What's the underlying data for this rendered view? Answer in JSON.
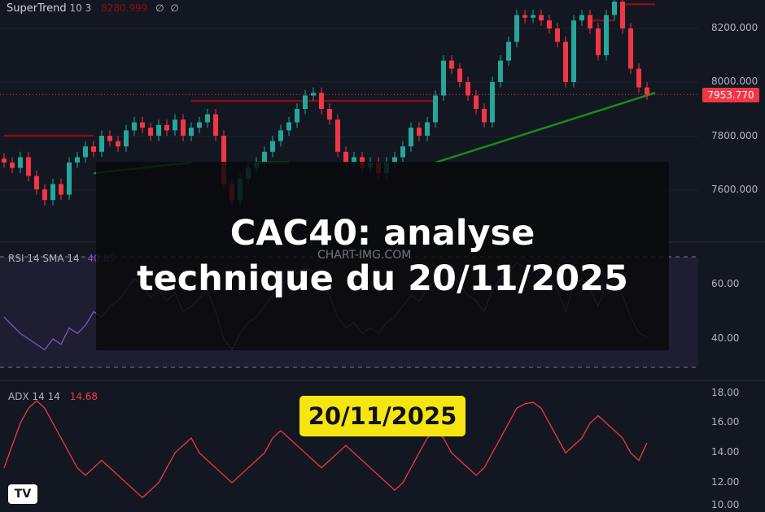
{
  "supertrend": {
    "label": "SuperTrend",
    "params": "10 3",
    "value": "8280.999",
    "extra1": "∅",
    "extra2": "∅"
  },
  "rsi": {
    "label": "RSI",
    "params": "14 SMA 14",
    "value": "40.85"
  },
  "adx": {
    "label": "ADX",
    "params": "14 14",
    "value": "14.68"
  },
  "watermark": "CHART-IMG.COM",
  "price_axis": [
    "8200.000",
    "8000.000",
    "7800.000",
    "7600.000"
  ],
  "rsi_axis": [
    "60.00",
    "40.00"
  ],
  "adx_axis": [
    "18.00",
    "16.00",
    "14.00",
    "12.00",
    "10.00"
  ],
  "last_price": "7953.770",
  "overlay": {
    "line1": "CAC40: analyse",
    "line2": "technique du 20/11/2025"
  },
  "date_badge": "20/11/2025",
  "logo": "TV",
  "colors": {
    "up": "#26a69a",
    "down": "#f23645",
    "st_up": "#1b8a1b",
    "st_down": "#8b0d10",
    "rsi": "#7e57c2",
    "adx": "#f23645",
    "badge": "#f5e612"
  },
  "chart_data": {
    "type": "candlestick",
    "closes": [
      7700,
      7680,
      7720,
      7650,
      7600,
      7560,
      7620,
      7580,
      7700,
      7720,
      7760,
      7740,
      7800,
      7780,
      7760,
      7820,
      7850,
      7830,
      7800,
      7840,
      7820,
      7860,
      7800,
      7830,
      7850,
      7880,
      7800,
      7620,
      7560,
      7640,
      7680,
      7700,
      7740,
      7780,
      7820,
      7850,
      7900,
      7950,
      7960,
      7900,
      7860,
      7740,
      7700,
      7720,
      7680,
      7700,
      7660,
      7700,
      7720,
      7760,
      7830,
      7800,
      7850,
      7950,
      8080,
      8050,
      8000,
      7950,
      7900,
      7850,
      8000,
      8080,
      8150,
      8250,
      8240,
      8250,
      8230,
      8200,
      8150,
      8000,
      8230,
      8250,
      8200,
      8100,
      8250,
      8300,
      8200,
      8050,
      7980,
      7953.77
    ],
    "supertrend": [
      {
        "from": 0,
        "to": 11,
        "start": 7800,
        "end": 7800,
        "dir": "down"
      },
      {
        "from": 11,
        "to": 23,
        "start": 7660,
        "end": 7700,
        "dir": "up"
      },
      {
        "from": 23,
        "to": 35,
        "start": 7930,
        "end": 7930,
        "dir": "down"
      },
      {
        "from": 31,
        "to": 35,
        "start": 7700,
        "end": 7700,
        "dir": "up"
      },
      {
        "from": 35,
        "to": 53,
        "start": 7930,
        "end": 7930,
        "dir": "down"
      },
      {
        "from": 53,
        "to": 80,
        "start": 7700,
        "end": 7960,
        "dir": "up"
      },
      {
        "from": 72,
        "to": 75,
        "start": 8230,
        "end": 8230,
        "dir": "down"
      },
      {
        "from": 76,
        "to": 80,
        "start": 8290,
        "end": 8290,
        "dir": "down"
      }
    ],
    "rsi": [
      48,
      45,
      42,
      40,
      38,
      36,
      40,
      38,
      44,
      42,
      45,
      50,
      48,
      52,
      54,
      58,
      62,
      60,
      55,
      58,
      54,
      57,
      50,
      52,
      55,
      58,
      50,
      40,
      36,
      42,
      46,
      48,
      52,
      56,
      60,
      62,
      64,
      66,
      65,
      60,
      56,
      48,
      44,
      46,
      42,
      44,
      42,
      46,
      48,
      52,
      56,
      54,
      58,
      62,
      66,
      64,
      60,
      56,
      54,
      50,
      58,
      62,
      64,
      68,
      66,
      67,
      64,
      62,
      58,
      50,
      60,
      62,
      58,
      52,
      60,
      62,
      56,
      48,
      42,
      40.85
    ],
    "adx": [
      13,
      14.5,
      16,
      17,
      17.5,
      17,
      16,
      15,
      14,
      13,
      12.5,
      13,
      13.5,
      13,
      12.5,
      12,
      11.5,
      11,
      11.5,
      12,
      13,
      14,
      14.5,
      15,
      14,
      13.5,
      13,
      12.5,
      12,
      12.5,
      13,
      13.5,
      14,
      15,
      15.5,
      15,
      14.5,
      14,
      13.5,
      13,
      13.5,
      14,
      14.5,
      14,
      13.5,
      13,
      12.5,
      12,
      11.5,
      12,
      13,
      14,
      15,
      15.5,
      15,
      14,
      13.5,
      13,
      12.5,
      13,
      14,
      15,
      16,
      17,
      17.3,
      17.4,
      17,
      16,
      15,
      14,
      14.5,
      15,
      16,
      16.5,
      16,
      15.5,
      15,
      14,
      13.5,
      14.68
    ],
    "price_ylim": [
      7500,
      8300
    ],
    "rsi_ylim": [
      30,
      70
    ],
    "adx_ylim": [
      10,
      18.3
    ]
  }
}
